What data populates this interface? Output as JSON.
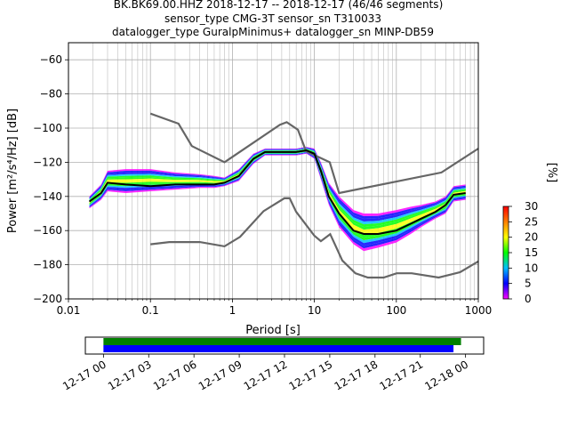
{
  "header": {
    "line1": "BK.BK69.00.HHZ   2018-12-17 -- 2018-12-17  (46/46 segments)",
    "line2": "sensor_type CMG-3T sensor_sn T310033",
    "line3": "datalogger_type GuralpMinimus+ datalogger_sn MINP-DB59"
  },
  "chart_data": [
    {
      "type": "heatmap",
      "xlabel": "Period [s]",
      "ylabel": "Power [m²/s⁴/Hz] [dB]",
      "x_scale": "log",
      "xlim": [
        0.01,
        1000
      ],
      "ylim": [
        -200,
        -50
      ],
      "x_ticks": [
        0.01,
        0.1,
        1,
        10,
        100,
        1000
      ],
      "x_tick_labels": [
        "0.01",
        "0.1",
        "1",
        "10",
        "100",
        "1000"
      ],
      "y_ticks": [
        -200,
        -180,
        -160,
        -140,
        -120,
        -100,
        -80,
        -60
      ],
      "y_tick_labels": [
        "−200",
        "−180",
        "−160",
        "−140",
        "−120",
        "−100",
        "−80",
        "−60"
      ],
      "grid": true,
      "colorbar": {
        "label": "[%]",
        "range": [
          0,
          30
        ],
        "ticks": [
          "0",
          "5",
          "10",
          "15",
          "20",
          "25",
          "30"
        ],
        "colors": [
          "#ff00ff",
          "#0000ff",
          "#00bfff",
          "#00ff00",
          "#ffff00",
          "#ff8000",
          "#ff0000"
        ]
      },
      "series": [
        {
          "role": "mode",
          "color": "#000000",
          "x": [
            0.018,
            0.025,
            0.03,
            0.05,
            0.1,
            0.2,
            0.4,
            0.6,
            0.8,
            1.2,
            1.8,
            2.5,
            4,
            6,
            8,
            10,
            12,
            15,
            20,
            30,
            40,
            60,
            100,
            150,
            200,
            300,
            400,
            500,
            700
          ],
          "y": [
            -143,
            -138,
            -132,
            -133,
            -134,
            -133,
            -133,
            -133,
            -132,
            -128,
            -118,
            -114,
            -114,
            -114,
            -113,
            -115,
            -125,
            -140,
            -150,
            -160,
            -162,
            -162,
            -160,
            -156,
            -153,
            -149,
            -145,
            -139,
            -138
          ]
        },
        {
          "role": "high_noise_model",
          "color": "#666666",
          "x": [
            0.1,
            0.22,
            0.32,
            0.8,
            3.8,
            4.6,
            6.3,
            7.9,
            15.4,
            20,
            354.8,
            1000
          ],
          "y": [
            -91.5,
            -97.4,
            -110.5,
            -120,
            -98,
            -96.5,
            -101,
            -113.5,
            -120,
            -138,
            -126,
            -112
          ]
        },
        {
          "role": "low_noise_model",
          "color": "#666666",
          "x": [
            0.1,
            0.17,
            0.4,
            0.8,
            1.24,
            2.4,
            4.3,
            5.0,
            6.0,
            10,
            12,
            15.6,
            21.9,
            31.6,
            45,
            70,
            101,
            154,
            328,
            600,
            1000
          ],
          "y": [
            -168,
            -166.7,
            -166.7,
            -169.2,
            -163.7,
            -148.6,
            -141.1,
            -141.1,
            -149,
            -163,
            -166.2,
            -162.1,
            -177.5,
            -185,
            -187.5,
            -187.5,
            -185,
            -185,
            -187.5,
            -184.4,
            -178
          ]
        }
      ],
      "density_band": {
        "x": [
          0.018,
          0.025,
          0.03,
          0.05,
          0.1,
          0.2,
          0.4,
          0.6,
          0.8,
          1.2,
          1.8,
          2.5,
          4,
          6,
          8,
          10,
          12,
          15,
          20,
          30,
          40,
          60,
          100,
          150,
          200,
          300,
          400,
          500,
          700
        ],
        "upper": [
          -140,
          -133,
          -125,
          -124,
          -124,
          -126,
          -127,
          -128,
          -129,
          -124,
          -115,
          -112,
          -112,
          -112,
          -111,
          -112,
          -120,
          -132,
          -140,
          -148,
          -150,
          -150,
          -148,
          -146,
          -145,
          -143,
          -140,
          -134,
          -133
        ],
        "lower": [
          -147,
          -142,
          -137,
          -138,
          -137,
          -136,
          -135,
          -135,
          -134,
          -131,
          -121,
          -116,
          -116,
          -116,
          -115,
          -118,
          -130,
          -145,
          -158,
          -168,
          -172,
          -170,
          -167,
          -162,
          -158,
          -153,
          -150,
          -143,
          -142
        ]
      }
    },
    {
      "type": "bar",
      "role": "data_coverage",
      "x_tick_labels": [
        "12-17 00",
        "12-17 03",
        "12-17 06",
        "12-17 09",
        "12-17 12",
        "12-17 15",
        "12-17 18",
        "12-17 21",
        "12-18 00"
      ],
      "xlim_hours": [
        -1.2,
        25.2
      ],
      "bars": [
        {
          "start_hour": 0,
          "end_hour": 23.7,
          "color": "#008000"
        },
        {
          "start_hour": 0,
          "end_hour": 23.2,
          "color": "#0000ff"
        }
      ]
    }
  ]
}
